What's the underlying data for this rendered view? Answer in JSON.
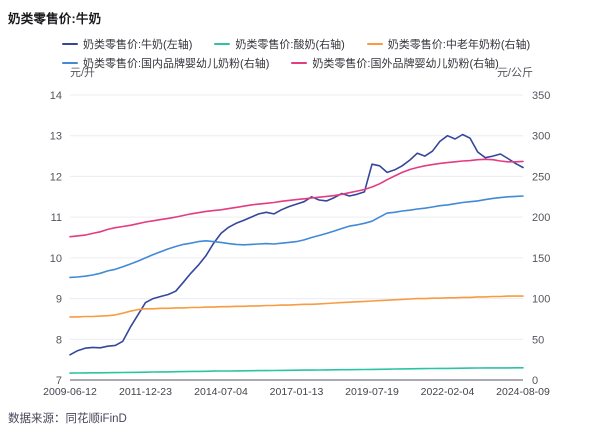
{
  "header": {
    "title": "奶类零售价:牛奶"
  },
  "source_note": "数据来源：同花顺iFinD",
  "chart_data": {
    "type": "line",
    "title": "奶类零售价:牛奶",
    "grid": true,
    "legend_position": "top",
    "x_tick_labels": [
      "2009-06-12",
      "2011-12-23",
      "2014-07-04",
      "2017-01-13",
      "2019-07-19",
      "2022-02-04",
      "2024-08-09"
    ],
    "axes": {
      "left": {
        "unit": "元/升",
        "min": 7,
        "max": 14,
        "ticks": [
          "14",
          "13",
          "12",
          "11",
          "10",
          "9",
          "8",
          "7"
        ]
      },
      "right": {
        "unit": "元/公斤",
        "min": 0,
        "max": 350,
        "ticks": [
          "350",
          "300",
          "250",
          "200",
          "150",
          "100",
          "50",
          "0"
        ]
      }
    },
    "colors": {
      "milk": "#35479B",
      "yogurt": "#2BC3A6",
      "senior_powder": "#F79C42",
      "domestic_infant": "#4289D6",
      "foreign_infant": "#E43C81",
      "gridline": "#ECECF4",
      "axis_line": "#ABABB8"
    },
    "legend_rows": [
      [
        0,
        1,
        2
      ],
      [
        3,
        4
      ]
    ],
    "series": [
      {
        "name": "奶类零售价:牛奶(左轴)",
        "axis": "left",
        "color": "#35479B",
        "values": [
          7.62,
          7.72,
          7.78,
          7.8,
          7.79,
          7.83,
          7.85,
          7.95,
          8.3,
          8.6,
          8.9,
          9.0,
          9.05,
          9.1,
          9.18,
          9.4,
          9.62,
          9.82,
          10.05,
          10.35,
          10.6,
          10.75,
          10.85,
          10.92,
          11.0,
          11.08,
          11.12,
          11.08,
          11.18,
          11.26,
          11.32,
          11.38,
          11.5,
          11.42,
          11.4,
          11.48,
          11.58,
          11.52,
          11.56,
          11.62,
          12.3,
          12.26,
          12.1,
          12.16,
          12.26,
          12.4,
          12.57,
          12.5,
          12.62,
          12.86,
          13.0,
          12.92,
          13.03,
          12.94,
          12.6,
          12.46,
          12.5,
          12.55,
          12.44,
          12.32,
          12.22
        ]
      },
      {
        "name": "奶类零售价:酸奶(右轴)",
        "axis": "right",
        "color": "#2BC3A6",
        "values": [
          8.5,
          8.6,
          8.7,
          8.8,
          8.9,
          9.0,
          9.1,
          9.2,
          9.3,
          9.5,
          9.6,
          9.8,
          9.9,
          10.0,
          10.2,
          10.3,
          10.5,
          10.6,
          10.7,
          10.9,
          11.0,
          11.1,
          11.2,
          11.3,
          11.4,
          11.5,
          11.6,
          11.7,
          11.8,
          11.9,
          12.0,
          12.1,
          12.2,
          12.3,
          12.4,
          12.5,
          12.6,
          12.7,
          12.8,
          12.9,
          13.0,
          13.2,
          13.3,
          13.5,
          13.6,
          13.8,
          13.9,
          14.0,
          14.1,
          14.2,
          14.3,
          14.4,
          14.5,
          14.6,
          14.7,
          14.8,
          14.8,
          14.9,
          14.9,
          15.0,
          15.0
        ]
      },
      {
        "name": "奶类零售价:中老年奶粉(右轴)",
        "axis": "right",
        "color": "#F79C42",
        "values": [
          77.5,
          77.5,
          78,
          78,
          78.5,
          79,
          80,
          82,
          84.5,
          86.5,
          87.5,
          87.5,
          88,
          88,
          88.5,
          88.5,
          89,
          89,
          89.5,
          89.5,
          90,
          90,
          90.5,
          90.5,
          91,
          91,
          91.5,
          91.5,
          92,
          92,
          92.5,
          93,
          93,
          93.5,
          94,
          94.5,
          95,
          95.5,
          96,
          96.5,
          97,
          97.5,
          98,
          98.5,
          99,
          99.5,
          100,
          100,
          100.5,
          100.5,
          101,
          101,
          101.5,
          101.5,
          102,
          102,
          102.5,
          102.5,
          103,
          103,
          103
        ]
      },
      {
        "name": "奶类零售价:国内品牌婴幼儿奶粉(右轴)",
        "axis": "right",
        "color": "#4289D6",
        "values": [
          126,
          126.5,
          127.5,
          129,
          131,
          134,
          136,
          139,
          142.5,
          146,
          150,
          154,
          157.5,
          161,
          164,
          166.5,
          168,
          170,
          171,
          170,
          169,
          167.5,
          166.5,
          166,
          166.5,
          167,
          167.5,
          167,
          168,
          169,
          170,
          172,
          175,
          177.5,
          180,
          183,
          186,
          189,
          190.5,
          192.5,
          195,
          200,
          205,
          206,
          207.5,
          208.5,
          210,
          211,
          212.5,
          214,
          215,
          216.5,
          218,
          219,
          220,
          221.5,
          223,
          224,
          225,
          225.5,
          226
        ]
      },
      {
        "name": "奶类零售价:国外品牌婴幼儿奶粉(右轴)",
        "axis": "right",
        "color": "#E43C81",
        "values": [
          176,
          177,
          178,
          180,
          182,
          185,
          187,
          188.5,
          190,
          192,
          194,
          195.5,
          197,
          198.5,
          200,
          202,
          204,
          205.5,
          207,
          208,
          209,
          210.5,
          212,
          213.5,
          215,
          216,
          217,
          218,
          219.5,
          220.5,
          221.5,
          222.5,
          223.5,
          224.5,
          225.5,
          226.5,
          228,
          230,
          232,
          234,
          237,
          241,
          246,
          250.5,
          255,
          258.5,
          261,
          263,
          264.5,
          266,
          267,
          268,
          269,
          269.5,
          270.5,
          271,
          270.5,
          269,
          268,
          268,
          268.5
        ]
      }
    ]
  }
}
